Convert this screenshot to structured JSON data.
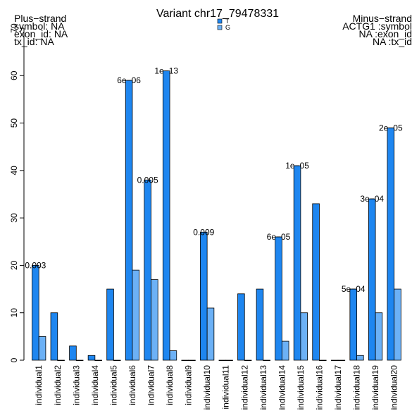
{
  "chart_data": {
    "type": "bar",
    "title": "Variant  chr17_79478331",
    "left_annotation": [
      "Plus−strand",
      "symbol: NA",
      "exon_id: NA",
      "tx_id: NA"
    ],
    "right_annotation": [
      "Minus−strand",
      "ACTG1 :symbol",
      "NA :exon_id",
      "NA :tx_id"
    ],
    "legend": {
      "position": "top-center",
      "entries": [
        {
          "name": "T",
          "color": "#1e86f0"
        },
        {
          "name": "G",
          "color": "#6cb1f6"
        }
      ]
    },
    "ylim": [
      0,
      70
    ],
    "yticks": [
      "0",
      "10",
      "20",
      "30",
      "40",
      "50",
      "60",
      "70"
    ],
    "categories": [
      "individual1",
      "individual2",
      "individual3",
      "individual4",
      "individual5",
      "individual6",
      "individual7",
      "individual8",
      "individual9",
      "individual10",
      "individual11",
      "individual12",
      "individual13",
      "individual14",
      "individual15",
      "individual16",
      "individual17",
      "individual18",
      "individual19",
      "individual20"
    ],
    "series": [
      {
        "name": "T",
        "color": "#1e86f0",
        "values": [
          20,
          10,
          3,
          1,
          15,
          59,
          38,
          61,
          0,
          27,
          0,
          14,
          15,
          26,
          41,
          33,
          0,
          15,
          34,
          49
        ]
      },
      {
        "name": "G",
        "color": "#6cb1f6",
        "values": [
          5,
          0,
          0,
          0,
          0,
          19,
          17,
          2,
          0,
          11,
          0,
          0,
          0,
          4,
          10,
          0,
          0,
          1,
          10,
          15
        ]
      }
    ],
    "pvalue_labels": [
      "0.003",
      "",
      "",
      "",
      "",
      "6e−06",
      "0.005",
      "1e−13",
      "",
      "0.009",
      "",
      "",
      "",
      "6e−05",
      "1e−05",
      "",
      "",
      "5e−04",
      "3e−04",
      "2e−05"
    ]
  }
}
